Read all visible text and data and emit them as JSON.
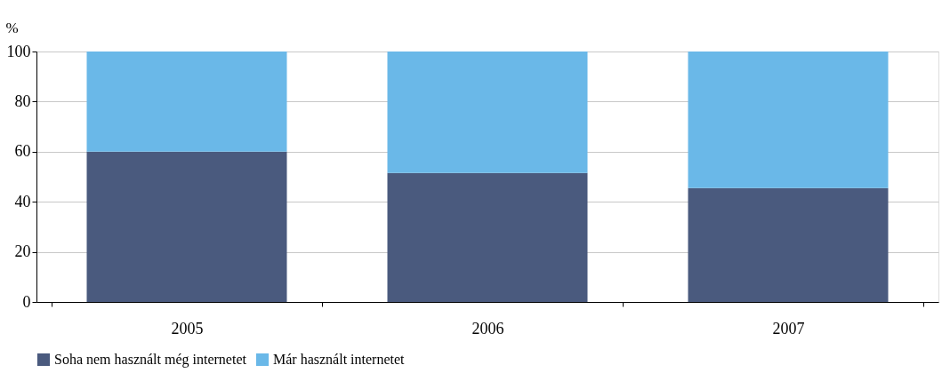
{
  "chart_data": {
    "type": "bar",
    "stacked": true,
    "ylabel": "%",
    "categories": [
      "2005",
      "2006",
      "2007"
    ],
    "series": [
      {
        "name": "Soha nem használt még internetet",
        "color": "#4a5a7e",
        "values": [
          60,
          51.5,
          45.5
        ]
      },
      {
        "name": "Már használt internetet",
        "color": "#6ab8e8",
        "values": [
          40,
          48.5,
          54.5
        ]
      }
    ],
    "ylim": [
      0,
      100
    ],
    "yticks": [
      0,
      20,
      40,
      60,
      80,
      100
    ],
    "grid": "y",
    "legend": "bottom"
  }
}
